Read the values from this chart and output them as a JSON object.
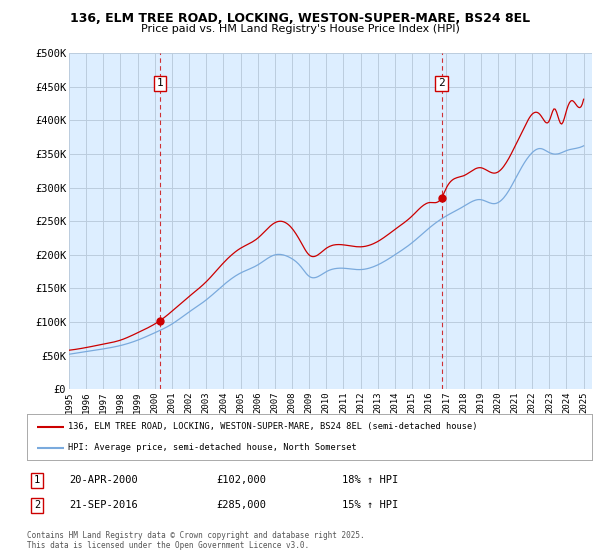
{
  "title": "136, ELM TREE ROAD, LOCKING, WESTON-SUPER-MARE, BS24 8EL",
  "subtitle": "Price paid vs. HM Land Registry's House Price Index (HPI)",
  "legend_line1": "136, ELM TREE ROAD, LOCKING, WESTON-SUPER-MARE, BS24 8EL (semi-detached house)",
  "legend_line2": "HPI: Average price, semi-detached house, North Somerset",
  "footnote": "Contains HM Land Registry data © Crown copyright and database right 2025.\nThis data is licensed under the Open Government Licence v3.0.",
  "marker1_label": "1",
  "marker1_date": "20-APR-2000",
  "marker1_price": "£102,000",
  "marker1_hpi": "18% ↑ HPI",
  "marker2_label": "2",
  "marker2_date": "21-SEP-2016",
  "marker2_price": "£285,000",
  "marker2_hpi": "15% ↑ HPI",
  "red_color": "#cc0000",
  "blue_color": "#7aaadd",
  "chart_bg": "#ddeeff",
  "background_color": "#ffffff",
  "grid_color": "#bbccdd",
  "ylim": [
    0,
    500000
  ],
  "yticks": [
    0,
    50000,
    100000,
    150000,
    200000,
    250000,
    300000,
    350000,
    400000,
    450000,
    500000
  ],
  "ytick_labels": [
    "£0",
    "£50K",
    "£100K",
    "£150K",
    "£200K",
    "£250K",
    "£300K",
    "£350K",
    "£400K",
    "£450K",
    "£500K"
  ],
  "xlim_start": 1995.0,
  "xlim_end": 2025.5,
  "xtick_years": [
    1995,
    1996,
    1997,
    1998,
    1999,
    2000,
    2001,
    2002,
    2003,
    2004,
    2005,
    2006,
    2007,
    2008,
    2009,
    2010,
    2011,
    2012,
    2013,
    2014,
    2015,
    2016,
    2017,
    2018,
    2019,
    2020,
    2021,
    2022,
    2023,
    2024,
    2025
  ],
  "marker1_x": 2000.3,
  "marker1_y": 102000,
  "marker2_x": 2016.72,
  "marker2_y": 285000,
  "vline1_x": 2000.3,
  "vline2_x": 2016.72
}
